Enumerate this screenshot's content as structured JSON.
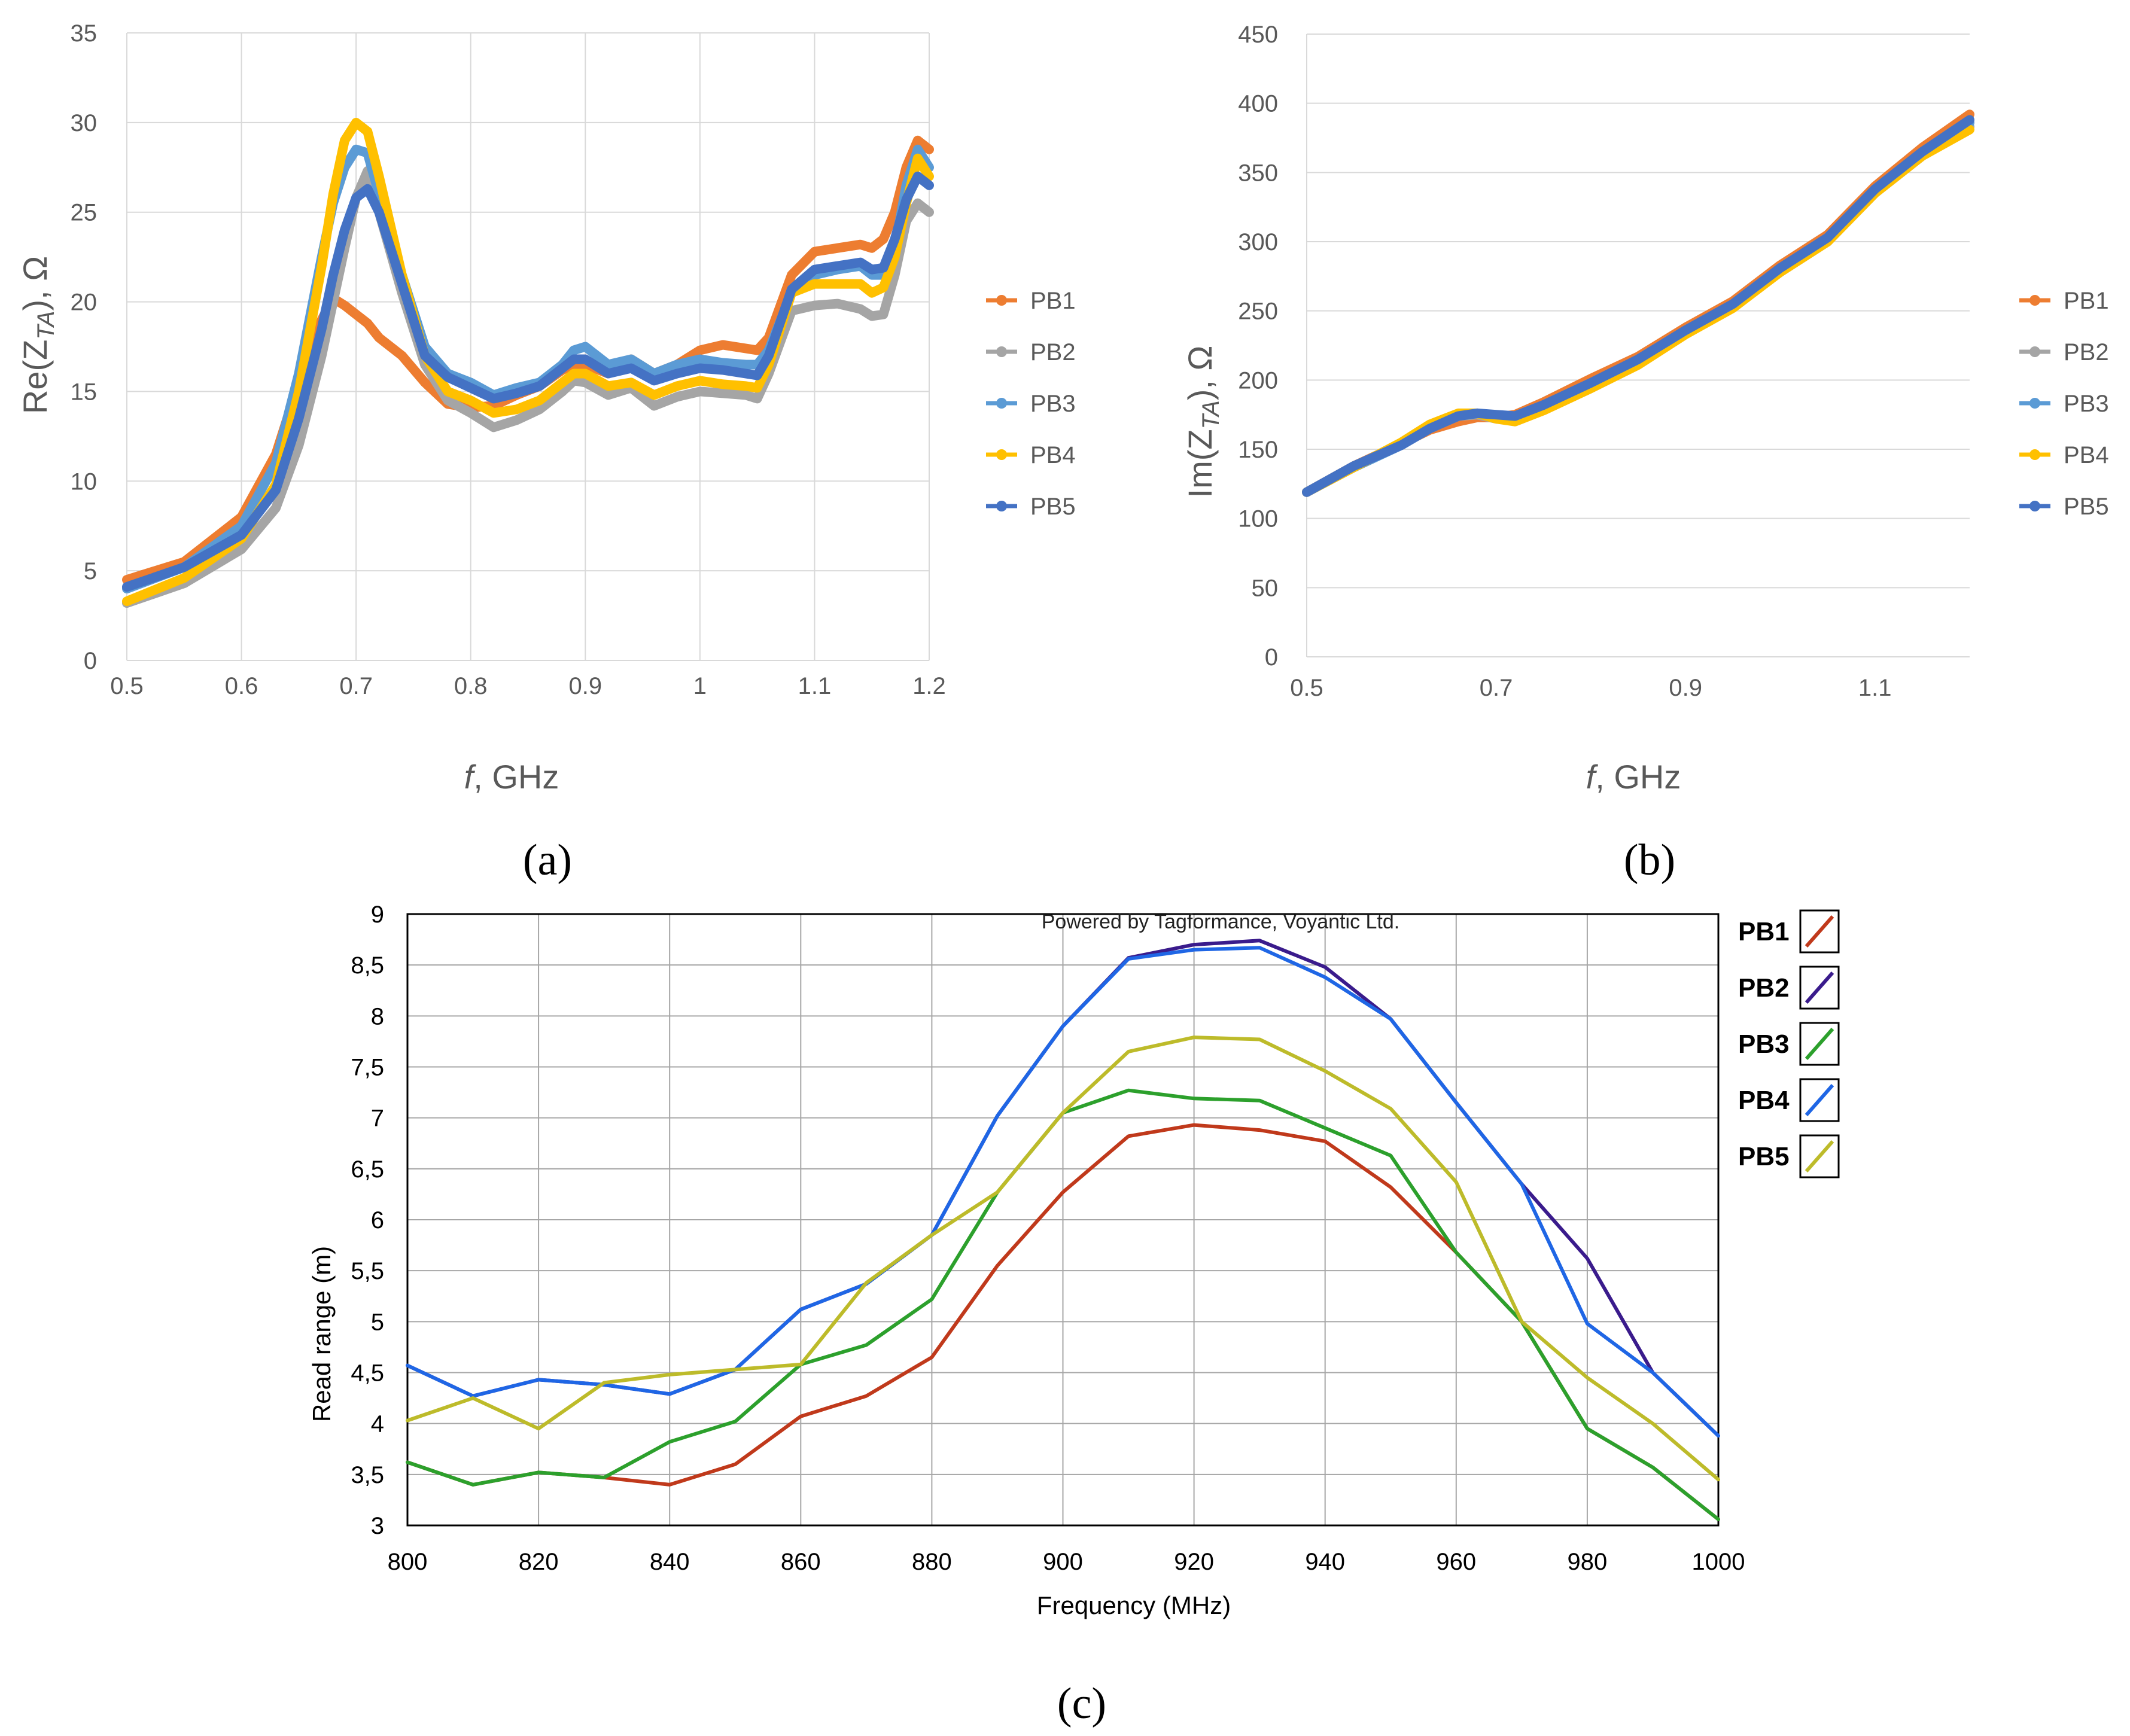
{
  "chart_data": [
    {
      "id": "a",
      "type": "line",
      "panel_label": "(a)",
      "title": "",
      "xlabel_italic": "f",
      "xlabel_rest": ", GHz",
      "ylabel_pre": "Re(Z",
      "ylabel_sub": "TA",
      "ylabel_post": "), Ω",
      "xlim": [
        0.5,
        1.2
      ],
      "ylim": [
        0,
        35
      ],
      "xticks": [
        0.5,
        0.6,
        0.7,
        0.8,
        0.9,
        1.0,
        1.1,
        1.2
      ],
      "xtick_labels": [
        "0.5",
        "0.6",
        "0.7",
        "0.8",
        "0.9",
        "1",
        "1.1",
        "1.2"
      ],
      "yticks": [
        0,
        5,
        10,
        15,
        20,
        25,
        30,
        35
      ],
      "ytick_labels": [
        "0",
        "5",
        "10",
        "15",
        "20",
        "25",
        "30",
        "35"
      ],
      "legend_position": "right",
      "x": [
        0.5,
        0.55,
        0.6,
        0.63,
        0.65,
        0.67,
        0.68,
        0.69,
        0.7,
        0.71,
        0.72,
        0.74,
        0.76,
        0.78,
        0.8,
        0.82,
        0.84,
        0.86,
        0.88,
        0.89,
        0.9,
        0.92,
        0.94,
        0.96,
        0.98,
        1.0,
        1.02,
        1.04,
        1.05,
        1.06,
        1.08,
        1.1,
        1.12,
        1.14,
        1.15,
        1.16,
        1.17,
        1.18,
        1.19,
        1.2
      ],
      "series": [
        {
          "name": "PB1",
          "color": "#ED7D31",
          "values": [
            4.5,
            5.5,
            8.0,
            11.5,
            15.5,
            19.0,
            20.2,
            19.8,
            19.3,
            18.8,
            18.0,
            17.0,
            15.5,
            14.3,
            14.1,
            14.2,
            14.8,
            15.3,
            16.2,
            16.5,
            16.5,
            16.0,
            16.8,
            16.0,
            16.5,
            17.3,
            17.6,
            17.4,
            17.3,
            18.0,
            21.5,
            22.8,
            23.0,
            23.2,
            23.0,
            23.5,
            25.0,
            27.5,
            29.0,
            28.5
          ]
        },
        {
          "name": "PB2",
          "color": "#A5A5A5",
          "values": [
            3.2,
            4.3,
            6.2,
            8.5,
            12.0,
            17.0,
            20.0,
            23.0,
            25.8,
            27.3,
            25.0,
            20.5,
            16.5,
            14.5,
            13.8,
            13.0,
            13.4,
            14.0,
            15.0,
            15.6,
            15.5,
            14.8,
            15.2,
            14.2,
            14.7,
            15.0,
            14.9,
            14.8,
            14.6,
            16.0,
            19.5,
            19.8,
            19.9,
            19.6,
            19.2,
            19.3,
            21.5,
            24.5,
            25.5,
            25.0
          ]
        },
        {
          "name": "PB3",
          "color": "#5B9BD5",
          "values": [
            4.0,
            5.2,
            7.5,
            11.0,
            16.0,
            22.5,
            25.5,
            27.5,
            28.5,
            28.3,
            26.0,
            21.5,
            17.5,
            16.0,
            15.5,
            14.8,
            15.2,
            15.5,
            16.5,
            17.3,
            17.5,
            16.5,
            16.8,
            16.0,
            16.5,
            16.8,
            16.6,
            16.5,
            16.5,
            17.3,
            20.5,
            21.5,
            21.8,
            22.0,
            21.5,
            21.5,
            23.0,
            26.5,
            28.5,
            27.5
          ]
        },
        {
          "name": "PB4",
          "color": "#FFC000",
          "values": [
            3.3,
            4.6,
            6.8,
            9.8,
            15.0,
            22.0,
            26.0,
            29.0,
            30.0,
            29.5,
            27.0,
            21.5,
            17.0,
            15.0,
            14.5,
            13.8,
            14.0,
            14.5,
            15.5,
            16.0,
            16.0,
            15.3,
            15.5,
            14.8,
            15.3,
            15.6,
            15.4,
            15.3,
            15.2,
            16.5,
            20.5,
            21.0,
            21.0,
            21.0,
            20.5,
            20.8,
            22.5,
            25.5,
            28.0,
            27.0
          ]
        },
        {
          "name": "PB5",
          "color": "#4472C4",
          "values": [
            4.1,
            5.2,
            7.0,
            9.5,
            13.5,
            18.5,
            21.5,
            24.0,
            25.8,
            26.3,
            25.0,
            21.0,
            17.0,
            15.8,
            15.2,
            14.6,
            14.9,
            15.3,
            16.3,
            16.8,
            16.8,
            16.0,
            16.3,
            15.6,
            16.0,
            16.3,
            16.2,
            16.0,
            15.9,
            17.0,
            20.7,
            21.8,
            22.0,
            22.2,
            21.8,
            21.9,
            23.5,
            25.7,
            27.0,
            26.5
          ]
        }
      ]
    },
    {
      "id": "b",
      "type": "line",
      "panel_label": "(b)",
      "title": "",
      "xlabel_italic": "f",
      "xlabel_rest": ", GHz",
      "ylabel_pre": "Im(Z",
      "ylabel_sub": "TA",
      "ylabel_post": "), Ω",
      "xlim": [
        0.5,
        1.2
      ],
      "ylim": [
        0,
        450
      ],
      "xticks": [
        0.5,
        0.7,
        0.9,
        1.1
      ],
      "xtick_labels": [
        "0.5",
        "0.7",
        "0.9",
        "1.1"
      ],
      "yticks": [
        0,
        50,
        100,
        150,
        200,
        250,
        300,
        350,
        400,
        450
      ],
      "ytick_labels": [
        "0",
        "50",
        "100",
        "150",
        "200",
        "250",
        "300",
        "350",
        "400",
        "450"
      ],
      "legend_position": "right",
      "x": [
        0.5,
        0.55,
        0.6,
        0.63,
        0.66,
        0.68,
        0.7,
        0.72,
        0.75,
        0.8,
        0.85,
        0.9,
        0.95,
        1.0,
        1.05,
        1.1,
        1.15,
        1.2
      ],
      "series": [
        {
          "name": "PB1",
          "color": "#ED7D31",
          "values": [
            119,
            138,
            154,
            164,
            170,
            173,
            173,
            175,
            184,
            201,
            217,
            238,
            257,
            283,
            305,
            340,
            368,
            392
          ]
        },
        {
          "name": "PB2",
          "color": "#A5A5A5",
          "values": [
            119,
            137,
            154,
            166,
            174,
            175,
            172,
            171,
            180,
            196,
            213,
            234,
            253,
            278,
            300,
            335,
            362,
            383
          ]
        },
        {
          "name": "PB3",
          "color": "#5B9BD5",
          "values": [
            119,
            137,
            153,
            165,
            174,
            176,
            174,
            173,
            181,
            197,
            214,
            235,
            254,
            280,
            302,
            337,
            364,
            386
          ]
        },
        {
          "name": "PB4",
          "color": "#FFC000",
          "values": [
            119,
            137,
            155,
            168,
            176,
            176,
            172,
            170,
            178,
            194,
            211,
            233,
            252,
            278,
            300,
            335,
            362,
            381
          ]
        },
        {
          "name": "PB5",
          "color": "#4472C4",
          "values": [
            119,
            138,
            153,
            165,
            174,
            176,
            175,
            174,
            182,
            198,
            215,
            236,
            255,
            281,
            303,
            338,
            365,
            388
          ]
        }
      ]
    },
    {
      "id": "c",
      "type": "line",
      "panel_label": "(c)",
      "title": "",
      "credit": "Powered by Tagformance, Voyantic Ltd.",
      "xlabel": "Frequency (MHz)",
      "ylabel": "Read range (m)",
      "xlim": [
        800,
        1000
      ],
      "ylim": [
        3,
        9
      ],
      "xticks": [
        800,
        820,
        840,
        860,
        880,
        900,
        920,
        940,
        960,
        980,
        1000
      ],
      "xtick_labels": [
        "800",
        "820",
        "840",
        "860",
        "880",
        "900",
        "920",
        "940",
        "960",
        "980",
        "1000"
      ],
      "yticks": [
        3,
        3.5,
        4,
        4.5,
        5,
        5.5,
        6,
        6.5,
        7,
        7.5,
        8,
        8.5,
        9
      ],
      "ytick_labels": [
        "3",
        "3,5",
        "4",
        "4,5",
        "5",
        "5,5",
        "6",
        "6,5",
        "7",
        "7,5",
        "8",
        "8,5",
        "9"
      ],
      "legend_position": "right",
      "x": [
        800,
        810,
        820,
        830,
        840,
        850,
        860,
        870,
        880,
        890,
        900,
        910,
        920,
        930,
        940,
        950,
        960,
        970,
        980,
        990,
        1000
      ],
      "series": [
        {
          "name": "PB1",
          "color": "#C0391B",
          "values": [
            3.62,
            3.4,
            3.52,
            3.47,
            3.4,
            3.6,
            4.07,
            4.27,
            4.65,
            5.55,
            6.27,
            6.82,
            6.93,
            6.88,
            6.77,
            6.32,
            5.68,
            5.0,
            3.95,
            3.57,
            3.06
          ]
        },
        {
          "name": "PB2",
          "color": "#3A1B8C",
          "values": [
            4.57,
            4.27,
            4.43,
            4.38,
            4.29,
            4.53,
            5.12,
            5.37,
            5.85,
            7.02,
            7.9,
            8.57,
            8.7,
            8.74,
            8.48,
            7.97,
            7.15,
            6.35,
            5.62,
            4.5,
            3.88
          ]
        },
        {
          "name": "PB3",
          "color": "#2CA02C",
          "values": [
            3.62,
            3.4,
            3.52,
            3.47,
            3.82,
            4.02,
            4.58,
            4.77,
            5.22,
            6.27,
            7.05,
            7.27,
            7.19,
            7.17,
            6.9,
            6.63,
            5.68,
            5.0,
            3.95,
            3.57,
            3.06
          ]
        },
        {
          "name": "PB4",
          "color": "#1F66E5",
          "values": [
            4.57,
            4.27,
            4.43,
            4.38,
            4.29,
            4.53,
            5.12,
            5.37,
            5.85,
            7.02,
            7.9,
            8.56,
            8.65,
            8.67,
            8.38,
            7.97,
            7.15,
            6.35,
            4.98,
            4.5,
            3.88
          ]
        },
        {
          "name": "PB5",
          "color": "#BDBB2A",
          "values": [
            4.03,
            4.25,
            3.95,
            4.4,
            4.48,
            4.53,
            4.58,
            5.38,
            5.85,
            6.27,
            7.05,
            7.65,
            7.79,
            7.77,
            7.46,
            7.09,
            6.37,
            5.0,
            4.45,
            4.0,
            3.45
          ]
        }
      ]
    }
  ]
}
